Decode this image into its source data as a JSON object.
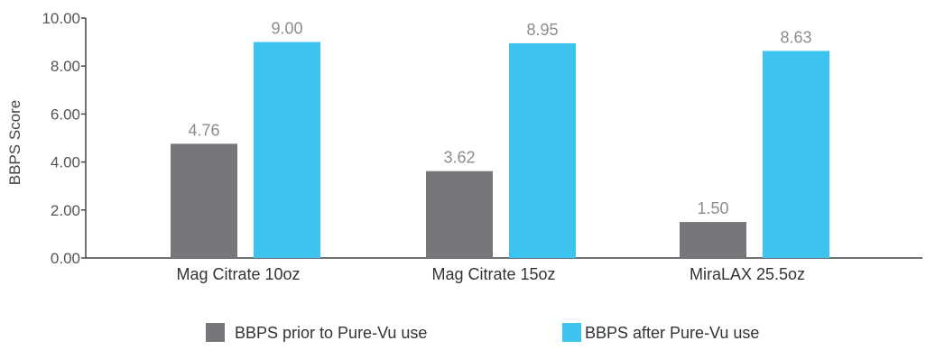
{
  "chart_data": {
    "type": "bar",
    "title": "",
    "xlabel": "",
    "ylabel": "BBPS Score",
    "ylim": [
      0,
      10
    ],
    "yticks": [
      "0.00",
      "2.00",
      "4.00",
      "6.00",
      "8.00",
      "10.00"
    ],
    "categories": [
      "Mag Citrate 10oz",
      "Mag Citrate 15oz",
      "MiraLAX 25.5oz"
    ],
    "series": [
      {
        "name": "BBPS prior to Pure-Vu use",
        "color": "#77777b",
        "values": [
          4.76,
          3.62,
          1.5
        ],
        "labels": [
          "4.76",
          "3.62",
          "1.50"
        ]
      },
      {
        "name": "BBPS after Pure-Vu use",
        "color": "#3cc4ef",
        "values": [
          9.0,
          8.95,
          8.63
        ],
        "labels": [
          "9.00",
          "8.95",
          "8.63"
        ]
      }
    ],
    "grid": false,
    "legend_position": "bottom"
  }
}
